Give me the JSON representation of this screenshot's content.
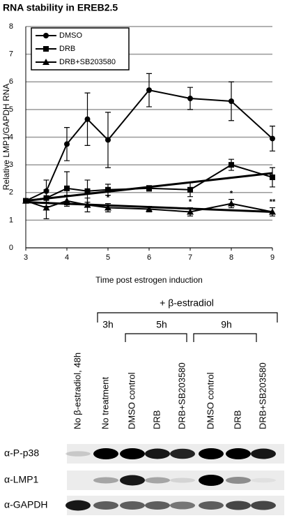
{
  "chart_data": {
    "type": "line",
    "title": "RNA stability in EREB2.5",
    "x_label": "Time post estrogen induction",
    "y_label": "Relative LMP1/GAPDH RNA",
    "x": [
      3,
      3.5,
      4,
      4.5,
      5,
      6,
      7,
      8,
      9
    ],
    "series": [
      {
        "name": "DMSO",
        "color": "#000000",
        "marker": "circle",
        "values": [
          1.7,
          2.05,
          3.75,
          4.65,
          3.9,
          5.7,
          5.4,
          5.3,
          3.95
        ],
        "errors": [
          null,
          0.4,
          0.6,
          0.95,
          1.0,
          0.6,
          0.4,
          0.7,
          0.45
        ]
      },
      {
        "name": "DRB",
        "color": "#000000",
        "marker": "square",
        "values": [
          1.7,
          1.8,
          2.15,
          2.05,
          2.1,
          2.15,
          2.1,
          3.0,
          2.55
        ],
        "errors": [
          null,
          0.3,
          0.6,
          0.4,
          0.2,
          0.1,
          0.25,
          0.2,
          0.35
        ]
      },
      {
        "name": "DRB+SB203580",
        "color": "#000000",
        "marker": "triangle",
        "values": [
          1.7,
          1.45,
          1.7,
          1.55,
          1.45,
          1.4,
          1.3,
          1.6,
          1.3
        ],
        "errors": [
          null,
          0.4,
          0.2,
          0.25,
          0.15,
          0.1,
          0.15,
          0.15,
          0.15
        ]
      }
    ],
    "trendlines": [
      {
        "x": [
          3,
          9
        ],
        "values": [
          1.7,
          2.7
        ]
      },
      {
        "x": [
          3,
          9
        ],
        "values": [
          1.65,
          1.3
        ]
      }
    ],
    "annotations": [
      {
        "text": "*",
        "x": 5
      },
      {
        "text": "*",
        "x": 7
      },
      {
        "text": "*",
        "x": 8
      },
      {
        "text": "**",
        "x": 9
      }
    ],
    "xlim": [
      3,
      9
    ],
    "xticks": [
      3,
      4,
      5,
      6,
      7,
      8,
      9
    ],
    "ylim": [
      0,
      8
    ],
    "yticks": [
      0,
      1,
      2,
      3,
      4,
      5,
      6,
      7,
      8
    ],
    "grid": true,
    "legend": "upper-left"
  },
  "blot": {
    "treatment": "+ β-estradiol",
    "timepoints": [
      "3h",
      "5h",
      "9h"
    ],
    "lanes": [
      "No β-estradiol, 48h",
      "No treatment",
      "DMSO control",
      "DRB",
      "DRB+SB203580",
      "DMSO control",
      "DRB",
      "DRB+SB203580"
    ],
    "rows": [
      "α-P-p38",
      "α-LMP1",
      "α-GAPDH"
    ]
  }
}
